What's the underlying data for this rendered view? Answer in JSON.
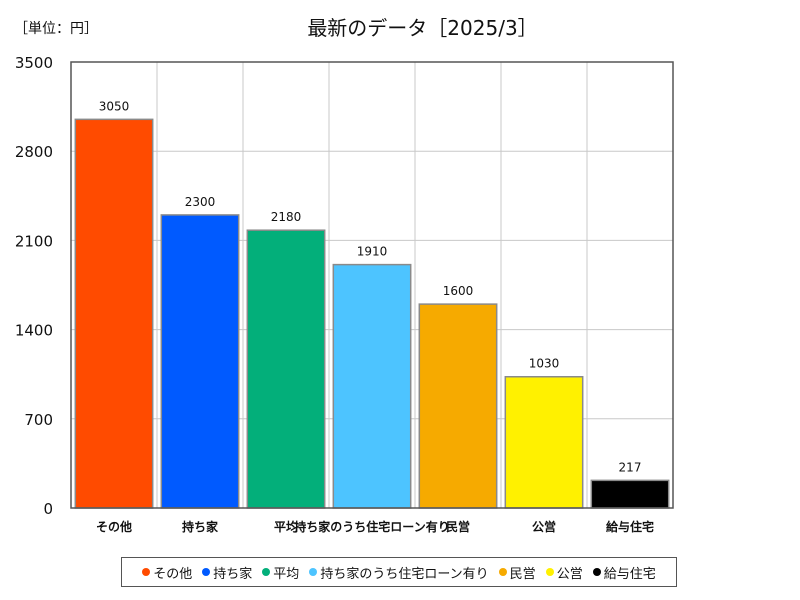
{
  "unit_label": "［単位：円］",
  "chart_data": {
    "type": "bar",
    "title": "最新のデータ［2025/3］",
    "xlabel": "",
    "ylabel": "",
    "ylim": [
      0,
      3500
    ],
    "yticks": [
      0,
      700,
      1400,
      2100,
      2800,
      3500
    ],
    "grid": true,
    "legend_position": "bottom",
    "categories": [
      "その他",
      "持ち家",
      "平均",
      "持ち家のうち住宅ローン有り",
      "民営",
      "公営",
      "給与住宅"
    ],
    "tick_labels": [
      "その他",
      "持ち家",
      "平均",
      "持ち家のうち住宅ローン有り",
      "民営",
      "公営",
      "給与住宅"
    ],
    "values": [
      3050,
      2300,
      2180,
      1910,
      1600,
      1030,
      217
    ],
    "colors": [
      "#ff4b00",
      "#005aff",
      "#03af7a",
      "#4dc4ff",
      "#f6aa00",
      "#fff100",
      "#000000"
    ],
    "legend": [
      "その他",
      "持ち家",
      "平均",
      "持ち家のうち住宅ローン有り",
      "民営",
      "公営",
      "給与住宅"
    ]
  }
}
